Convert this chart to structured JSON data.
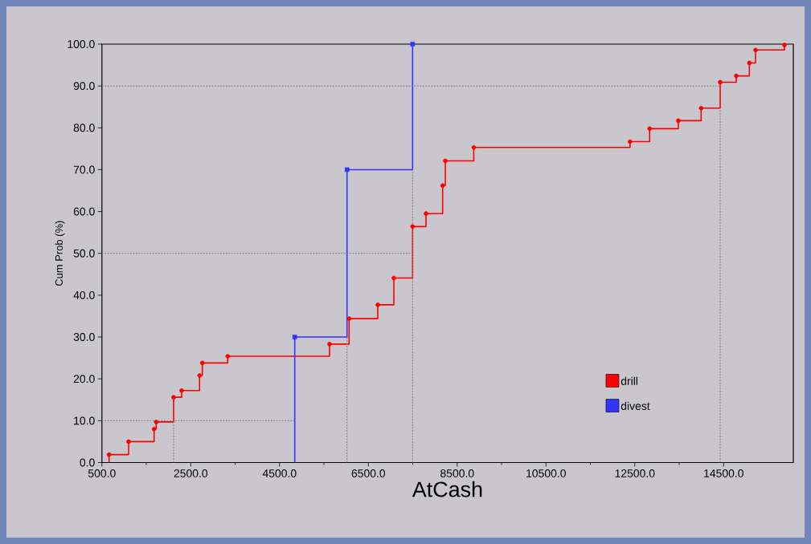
{
  "chart_data": {
    "type": "step",
    "xlabel": "AtCash",
    "ylabel": "Cum Prob (%)",
    "xlim": [
      500,
      16070
    ],
    "ylim": [
      0,
      100
    ],
    "xticks": [
      {
        "value": 500,
        "label": "500.0"
      },
      {
        "value": 2500,
        "label": "2500.0"
      },
      {
        "value": 4500,
        "label": "4500.0"
      },
      {
        "value": 6500,
        "label": "6500.0"
      },
      {
        "value": 8500,
        "label": "8500.0"
      },
      {
        "value": 10500,
        "label": "10500.0"
      },
      {
        "value": 12500,
        "label": "12500.0"
      },
      {
        "value": 14500,
        "label": "14500.0"
      }
    ],
    "yticks": [
      {
        "value": 0,
        "label": "0.0"
      },
      {
        "value": 10,
        "label": "10.0"
      },
      {
        "value": 20,
        "label": "20.0"
      },
      {
        "value": 30,
        "label": "30.0"
      },
      {
        "value": 40,
        "label": "40.0"
      },
      {
        "value": 50,
        "label": "50.0"
      },
      {
        "value": 60,
        "label": "60.0"
      },
      {
        "value": 70,
        "label": "70.0"
      },
      {
        "value": 80,
        "label": "80.0"
      },
      {
        "value": 90,
        "label": "90.0"
      },
      {
        "value": 100,
        "label": "100.0"
      }
    ],
    "legend": "bottom right",
    "series": [
      {
        "name": "drill",
        "color": "#ff0000",
        "marker": "circle",
        "x": [
          661,
          661,
          1101,
          1675,
          1722,
          2115,
          2296,
          2699,
          2761,
          3333,
          5626,
          6066,
          6712,
          7074,
          7496,
          7798,
          8173,
          8233,
          8874,
          12392,
          12835,
          13481,
          13994,
          14423,
          14784,
          15080,
          15219,
          15870
        ],
        "values": [
          0,
          1.9,
          5.0,
          8.0,
          9.7,
          15.6,
          17.2,
          20.8,
          23.8,
          25.4,
          28.3,
          34.4,
          37.7,
          44.1,
          56.4,
          59.5,
          66.2,
          72.1,
          75.3,
          76.7,
          79.8,
          81.7,
          84.7,
          90.9,
          92.4,
          95.5,
          98.6,
          99.8
        ]
      },
      {
        "name": "divest",
        "color": "#3333ff",
        "marker": "square",
        "x": [
          4842,
          4842,
          6019,
          7496
        ],
        "values": [
          0,
          30,
          70,
          100
        ]
      },
      {
        "type": "line",
        "color": "#808080",
        "line_style": "dashed",
        "x": [
          500,
          4842
        ],
        "values": [
          10,
          10
        ]
      },
      {
        "type": "line",
        "color": "#808080",
        "line_style": "dashed",
        "x": [
          2115,
          2115
        ],
        "values": [
          0,
          10
        ]
      },
      {
        "type": "line",
        "color": "#808080",
        "line_style": "dashed",
        "x": [
          500,
          7496
        ],
        "values": [
          50,
          50
        ]
      },
      {
        "type": "line",
        "color": "#808080",
        "line_style": "dashed",
        "x": [
          6019,
          6019
        ],
        "values": [
          0,
          30
        ]
      },
      {
        "type": "line",
        "color": "#808080",
        "line_style": "dashed",
        "x": [
          7496,
          7496
        ],
        "values": [
          0,
          70
        ]
      },
      {
        "type": "line",
        "color": "#808080",
        "line_style": "dashed",
        "x": [
          500,
          14423
        ],
        "values": [
          90,
          90
        ]
      },
      {
        "type": "line",
        "color": "#808080",
        "line_style": "dashed",
        "x": [
          14423,
          14423
        ],
        "values": [
          0,
          84.7
        ]
      }
    ]
  }
}
